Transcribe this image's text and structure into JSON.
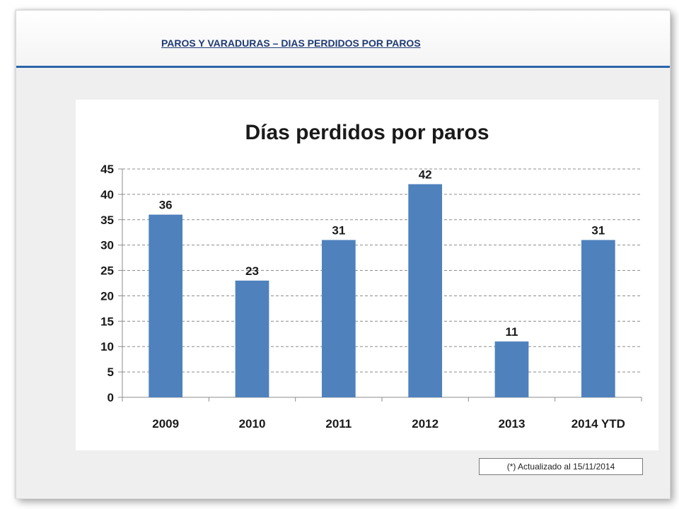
{
  "slide": {
    "title": "PAROS Y VARADURAS – DIAS PERDIDOS POR PAROS",
    "note": "(*) Actualizado al 15/11/2014"
  },
  "colors": {
    "bar": "#4f81bd",
    "header_rule": "#2a64a8",
    "grid": "#8c8c8c"
  },
  "chart_data": {
    "type": "bar",
    "title": "Días perdidos por paros",
    "categories": [
      "2009",
      "2010",
      "2011",
      "2012",
      "2013",
      "2014 YTD"
    ],
    "values": [
      36,
      23,
      31,
      42,
      11,
      31
    ],
    "ylim": [
      0,
      45
    ],
    "yticks": [
      0,
      5,
      10,
      15,
      20,
      25,
      30,
      35,
      40,
      45
    ],
    "grid": true,
    "grid_style": "dashed",
    "legend": "none",
    "data_labels": true
  }
}
